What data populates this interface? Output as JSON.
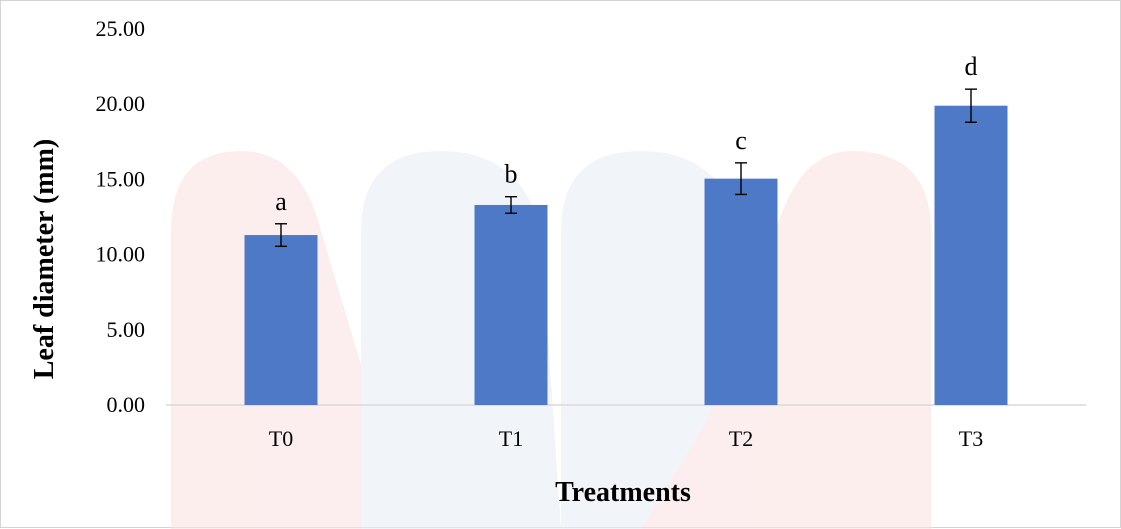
{
  "chart_data": {
    "type": "bar",
    "title": "",
    "xlabel": "Treatments",
    "ylabel": "Leaf diameter (mm)",
    "categories": [
      "T0",
      "T1",
      "T2",
      "T3"
    ],
    "values": [
      11.3,
      13.3,
      15.05,
      19.9
    ],
    "errors": [
      0.75,
      0.55,
      1.05,
      1.1
    ],
    "significance_letters": [
      "a",
      "b",
      "c",
      "d"
    ],
    "ylim": [
      0,
      25
    ],
    "yticks": [
      "0.00",
      "5.00",
      "10.00",
      "15.00",
      "20.00",
      "25.00"
    ],
    "grid": false,
    "legend": "none",
    "colors": {
      "bar": "#4472c4",
      "axis": "#d9d9d9",
      "error_bar": "#000000"
    }
  }
}
